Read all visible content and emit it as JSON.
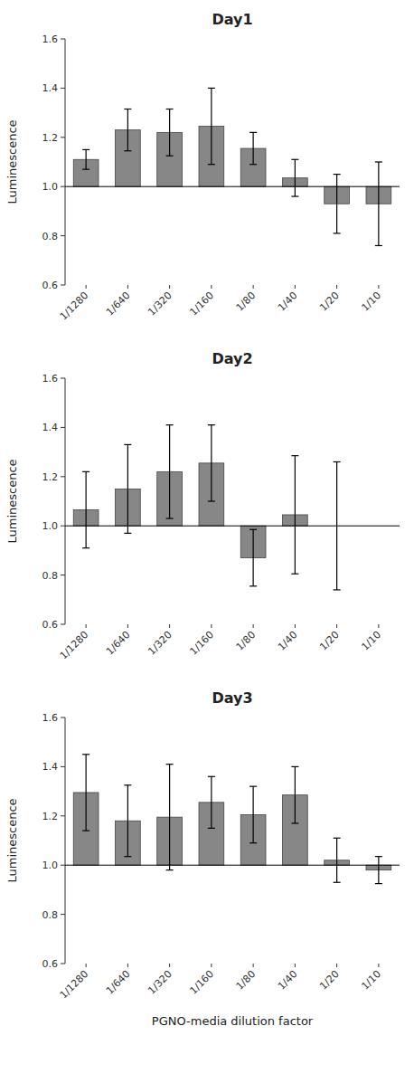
{
  "chart_data": [
    {
      "type": "bar",
      "title": "Day1",
      "categories": [
        "1/1280",
        "1/640",
        "1/320",
        "1/160",
        "1/80",
        "1/40",
        "1/20",
        "1/10"
      ],
      "values": [
        1.11,
        1.23,
        1.22,
        1.245,
        1.155,
        1.035,
        0.93,
        0.93
      ],
      "errors": [
        0.04,
        0.085,
        0.095,
        0.155,
        0.065,
        0.075,
        0.12,
        0.17
      ],
      "baseline": 1.0,
      "color": "#878787",
      "ylabel": "Luminescence",
      "ylim": [
        0.6,
        1.6
      ],
      "yticks": [
        0.6,
        0.8,
        {
          "value": 1.0,
          "label": "1.0"
        },
        1.2,
        1.4,
        1.6
      ]
    },
    {
      "type": "bar",
      "title": "Day2",
      "categories": [
        "1/1280",
        "1/640",
        "1/320",
        "1/160",
        "1/80",
        "1/40",
        "1/20",
        "1/10"
      ],
      "values": [
        1.065,
        1.15,
        1.22,
        1.255,
        0.87,
        1.045,
        1.0,
        1.0
      ],
      "errors": [
        0.155,
        0.18,
        0.19,
        0.155,
        0.115,
        0.24,
        0.26,
        0.0
      ],
      "baseline": 1.0,
      "color": "#878787",
      "ylabel": "Luminescence",
      "ylim": [
        0.6,
        1.6
      ],
      "yticks": [
        0.6,
        0.8,
        {
          "value": 1.0,
          "label": "1.0"
        },
        1.2,
        1.4,
        1.6
      ]
    },
    {
      "type": "bar",
      "title": "Day3",
      "categories": [
        "1/1280",
        "1/640",
        "1/320",
        "1/160",
        "1/80",
        "1/40",
        "1/20",
        "1/10"
      ],
      "values": [
        1.295,
        1.18,
        1.195,
        1.255,
        1.205,
        1.285,
        1.02,
        0.98
      ],
      "errors": [
        0.155,
        0.145,
        0.215,
        0.105,
        0.115,
        0.115,
        0.09,
        0.055
      ],
      "baseline": 1.0,
      "color": "#878787",
      "ylabel": "Luminescence",
      "xlabel": "PGNO-media dilution factor",
      "ylim": [
        0.6,
        1.6
      ],
      "yticks": [
        0.6,
        0.8,
        {
          "value": 1.0,
          "label": "1.0"
        },
        1.2,
        1.4,
        1.6
      ]
    }
  ]
}
